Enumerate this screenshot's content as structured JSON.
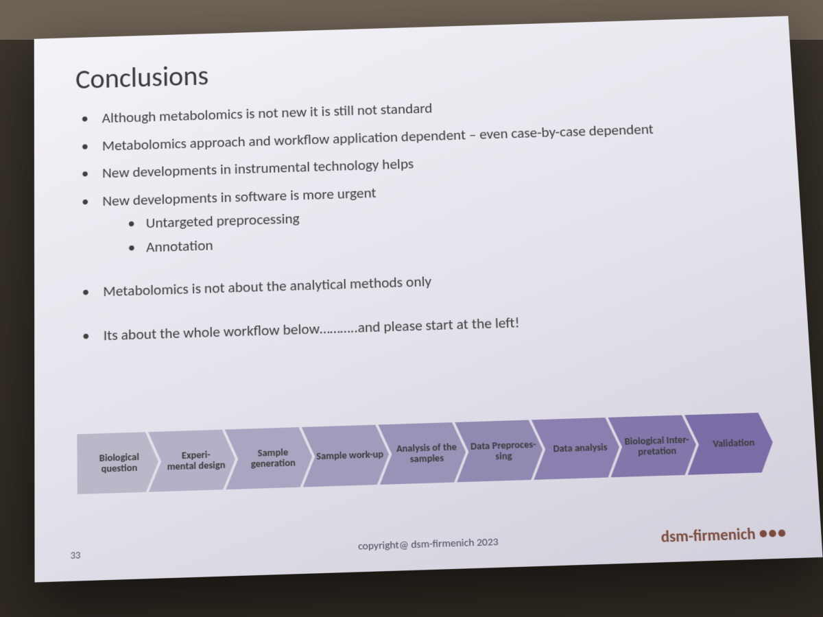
{
  "slide": {
    "title": "Conclusions",
    "bullets": [
      {
        "text": "Although metabolomics is not new it is still not standard"
      },
      {
        "text": "Metabolomics approach and workflow application dependent – even case-by-case dependent"
      },
      {
        "text": "New developments in instrumental technology helps"
      },
      {
        "text": "New developments in software is more urgent",
        "sub": [
          "Untargeted preprocessing",
          "Annotation"
        ]
      },
      {
        "text": "Metabolomics is not about the analytical methods only"
      },
      {
        "text": "Its about the whole workflow below………..and please start at the left!"
      }
    ],
    "workflow": {
      "type": "flowchart",
      "node_font_size_pt": 10,
      "node_font_weight": 700,
      "label_color": "#3b3b3b",
      "steps": [
        {
          "label": "Biological question",
          "color": "#b9b8c9"
        },
        {
          "label": "Experi-\nmental design",
          "color": "#b3b1c7"
        },
        {
          "label": "Sample generation",
          "color": "#aaa6c1"
        },
        {
          "label": "Sample work-up",
          "color": "#a29cbc"
        },
        {
          "label": "Analysis of the samples",
          "color": "#9a92b7"
        },
        {
          "label": "Data Preproces-\nsing",
          "color": "#9289b3"
        },
        {
          "label": "Data analysis",
          "color": "#8a7fae"
        },
        {
          "label": "Biological Inter-\npretation",
          "color": "#8276aa"
        },
        {
          "label": "Validation",
          "color": "#7a6da6"
        }
      ]
    },
    "footer": {
      "page_number": "33",
      "copyright": "copyright@ dsm-firmenich 2023",
      "brand": "dsm-firmenich",
      "brand_color": "#7a4a3c"
    },
    "background_gradient": [
      "#f4f3f8",
      "#e3e1ea",
      "#d2cfdc"
    ],
    "title_fontsize_pt": 30,
    "body_fontsize_pt": 16
  }
}
